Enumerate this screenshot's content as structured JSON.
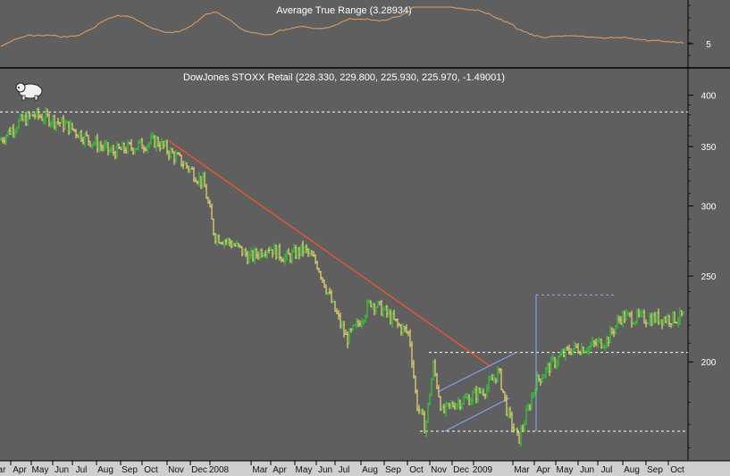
{
  "chart_data": [
    {
      "type": "line",
      "title": "Average True Range (3.28934)",
      "ticks": [
        5
      ],
      "tick_labels": [
        "5"
      ],
      "color": "#e8a060"
    },
    {
      "type": "bar",
      "subtype": "ohlc",
      "title": "DowJones STOXX Retail (228.330, 229.800, 225.930, 225.970, -1.49001)",
      "log_scale": true,
      "ylim": [
        155,
        410
      ],
      "yticks": [
        200,
        250,
        300,
        350,
        400
      ],
      "ytick_labels": [
        "200",
        "250",
        "300",
        "350",
        "400"
      ],
      "xtick_labels": [
        "ar",
        "Apr",
        "May",
        "Jun",
        "Jul",
        "Aug",
        "Sep",
        "Oct",
        "Nov",
        "Dec",
        "2008",
        "Mar",
        "Apr",
        "May",
        "Jun",
        "Jul",
        "Aug",
        "Sep",
        "Oct",
        "Nov",
        "Dec",
        "2009",
        "Mar",
        "Apr",
        "May",
        "Jun",
        "Jul",
        "Aug",
        "Sep",
        "Oct"
      ],
      "series_colors": {
        "up": "#33cc33",
        "down": "#e8d870"
      },
      "anchors": [
        [
          0,
          356
        ],
        [
          20,
          372
        ],
        [
          38,
          380
        ],
        [
          58,
          376
        ],
        [
          78,
          368
        ],
        [
          100,
          356
        ],
        [
          125,
          345
        ],
        [
          150,
          350
        ],
        [
          175,
          355
        ],
        [
          190,
          345
        ],
        [
          210,
          332
        ],
        [
          228,
          318
        ],
        [
          240,
          278
        ],
        [
          260,
          272
        ],
        [
          280,
          262
        ],
        [
          300,
          270
        ],
        [
          320,
          262
        ],
        [
          340,
          268
        ],
        [
          355,
          258
        ],
        [
          372,
          232
        ],
        [
          388,
          212
        ],
        [
          400,
          220
        ],
        [
          415,
          234
        ],
        [
          430,
          228
        ],
        [
          445,
          220
        ],
        [
          458,
          215
        ],
        [
          466,
          180
        ],
        [
          476,
          168
        ],
        [
          485,
          198
        ],
        [
          495,
          175
        ],
        [
          510,
          180
        ],
        [
          525,
          182
        ],
        [
          545,
          187
        ],
        [
          558,
          195
        ],
        [
          568,
          175
        ],
        [
          580,
          163
        ],
        [
          590,
          175
        ],
        [
          600,
          190
        ],
        [
          620,
          200
        ],
        [
          640,
          207
        ],
        [
          660,
          208
        ],
        [
          680,
          212
        ],
        [
          695,
          225
        ],
        [
          715,
          224
        ],
        [
          735,
          224
        ],
        [
          755,
          224
        ],
        [
          765,
          225
        ]
      ],
      "annotations": {
        "resistance_high": 383,
        "resistance_mid": 205,
        "support_low": 167,
        "target": 238,
        "trendline_start": [
          188,
          356
        ],
        "trendline_end": [
          548,
          198
        ]
      }
    }
  ]
}
